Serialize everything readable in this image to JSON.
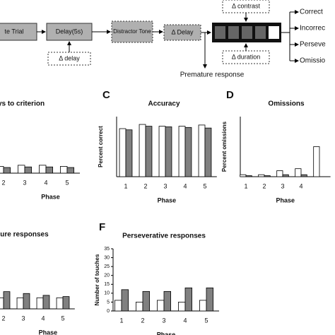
{
  "diagram": {
    "nodes": [
      {
        "label": "te Trial"
      },
      {
        "label": "Delay(5s)"
      },
      {
        "label": "Distractor Tone"
      },
      {
        "label": "Δ Delay"
      }
    ],
    "modifiers": [
      "Δ delay",
      "Δ contrast",
      "Δ duration"
    ],
    "premature": "Premature response",
    "outcomes": [
      "Correct",
      "Incorrec",
      "Perseve",
      "Omissio"
    ]
  },
  "chart_data": [
    {
      "type": "bar",
      "title": "ys to criterion",
      "xlabel": "Phase",
      "categories": [
        "2",
        "3",
        "4",
        "5"
      ],
      "ylim": [
        0,
        100
      ],
      "series": [
        {
          "color": "#ffffff",
          "values": [
            12,
            14,
            14,
            12
          ]
        },
        {
          "color": "#808080",
          "values": [
            10,
            11,
            11,
            10
          ]
        }
      ]
    },
    {
      "type": "bar",
      "panel": "C",
      "title": "Accuracy",
      "xlabel": "Phase",
      "ylabel": "Percent correct",
      "categories": [
        "1",
        "2",
        "3",
        "4",
        "5"
      ],
      "ylim": [
        0,
        100
      ],
      "series": [
        {
          "color": "#ffffff",
          "values": [
            80,
            87,
            84,
            84,
            86
          ]
        },
        {
          "color": "#808080",
          "values": [
            78,
            84,
            83,
            82,
            81
          ]
        }
      ]
    },
    {
      "type": "bar",
      "panel": "D",
      "title": "Omissions",
      "xlabel": "Phase",
      "ylabel": "Percent omissions",
      "categories": [
        "1",
        "2",
        "3",
        "4",
        null
      ],
      "ylim": [
        0,
        30
      ],
      "series": [
        {
          "color": "#ffffff",
          "values": [
            1,
            1,
            3,
            4,
            15
          ]
        },
        {
          "color": "#808080",
          "values": [
            0.5,
            0.5,
            1,
            1,
            null
          ]
        }
      ]
    },
    {
      "type": "bar",
      "title": "ature responses",
      "xlabel": "Phase",
      "categories": [
        "2",
        "3",
        "4",
        "5"
      ],
      "ylim": [
        0,
        100
      ],
      "series": [
        {
          "color": "#ffffff",
          "values": [
            18,
            18,
            18,
            18
          ]
        },
        {
          "color": "#808080",
          "values": [
            28,
            25,
            22,
            20
          ]
        }
      ]
    },
    {
      "type": "bar",
      "panel": "F",
      "title": "Perseverative responses",
      "xlabel": "Phase",
      "ylabel": "Number of touches",
      "categories": [
        "1",
        "2",
        "3",
        "4",
        "5"
      ],
      "ylim": [
        0,
        35
      ],
      "yticks": [
        0,
        5,
        10,
        15,
        20,
        25,
        30,
        35
      ],
      "series": [
        {
          "color": "#ffffff",
          "values": [
            6,
            5,
            6,
            5,
            6
          ]
        },
        {
          "color": "#808080",
          "values": [
            12,
            11,
            11,
            13,
            13
          ]
        }
      ]
    }
  ]
}
